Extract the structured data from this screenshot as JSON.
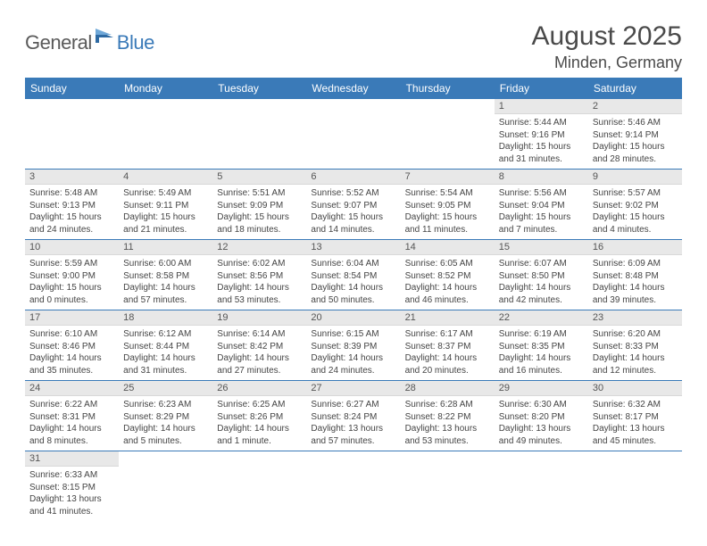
{
  "brand": {
    "part1": "General",
    "part2": "Blue"
  },
  "title": "August 2025",
  "location": "Minden, Germany",
  "colors": {
    "header_bg": "#3a7ab8",
    "header_fg": "#ffffff",
    "daynum_bg": "#e8e8e8",
    "row_border": "#3a7ab8",
    "logo_gray": "#5a5a5a",
    "logo_blue": "#3a7ab8",
    "text": "#444444",
    "page_bg": "#ffffff"
  },
  "typography": {
    "title_fontsize": 30,
    "location_fontsize": 18,
    "weekday_fontsize": 12,
    "daynum_fontsize": 11,
    "body_fontsize": 10
  },
  "weekdays": [
    "Sunday",
    "Monday",
    "Tuesday",
    "Wednesday",
    "Thursday",
    "Friday",
    "Saturday"
  ],
  "weeks": [
    [
      null,
      null,
      null,
      null,
      null,
      {
        "n": "1",
        "sr": "Sunrise: 5:44 AM",
        "ss": "Sunset: 9:16 PM",
        "dl": "Daylight: 15 hours and 31 minutes."
      },
      {
        "n": "2",
        "sr": "Sunrise: 5:46 AM",
        "ss": "Sunset: 9:14 PM",
        "dl": "Daylight: 15 hours and 28 minutes."
      }
    ],
    [
      {
        "n": "3",
        "sr": "Sunrise: 5:48 AM",
        "ss": "Sunset: 9:13 PM",
        "dl": "Daylight: 15 hours and 24 minutes."
      },
      {
        "n": "4",
        "sr": "Sunrise: 5:49 AM",
        "ss": "Sunset: 9:11 PM",
        "dl": "Daylight: 15 hours and 21 minutes."
      },
      {
        "n": "5",
        "sr": "Sunrise: 5:51 AM",
        "ss": "Sunset: 9:09 PM",
        "dl": "Daylight: 15 hours and 18 minutes."
      },
      {
        "n": "6",
        "sr": "Sunrise: 5:52 AM",
        "ss": "Sunset: 9:07 PM",
        "dl": "Daylight: 15 hours and 14 minutes."
      },
      {
        "n": "7",
        "sr": "Sunrise: 5:54 AM",
        "ss": "Sunset: 9:05 PM",
        "dl": "Daylight: 15 hours and 11 minutes."
      },
      {
        "n": "8",
        "sr": "Sunrise: 5:56 AM",
        "ss": "Sunset: 9:04 PM",
        "dl": "Daylight: 15 hours and 7 minutes."
      },
      {
        "n": "9",
        "sr": "Sunrise: 5:57 AM",
        "ss": "Sunset: 9:02 PM",
        "dl": "Daylight: 15 hours and 4 minutes."
      }
    ],
    [
      {
        "n": "10",
        "sr": "Sunrise: 5:59 AM",
        "ss": "Sunset: 9:00 PM",
        "dl": "Daylight: 15 hours and 0 minutes."
      },
      {
        "n": "11",
        "sr": "Sunrise: 6:00 AM",
        "ss": "Sunset: 8:58 PM",
        "dl": "Daylight: 14 hours and 57 minutes."
      },
      {
        "n": "12",
        "sr": "Sunrise: 6:02 AM",
        "ss": "Sunset: 8:56 PM",
        "dl": "Daylight: 14 hours and 53 minutes."
      },
      {
        "n": "13",
        "sr": "Sunrise: 6:04 AM",
        "ss": "Sunset: 8:54 PM",
        "dl": "Daylight: 14 hours and 50 minutes."
      },
      {
        "n": "14",
        "sr": "Sunrise: 6:05 AM",
        "ss": "Sunset: 8:52 PM",
        "dl": "Daylight: 14 hours and 46 minutes."
      },
      {
        "n": "15",
        "sr": "Sunrise: 6:07 AM",
        "ss": "Sunset: 8:50 PM",
        "dl": "Daylight: 14 hours and 42 minutes."
      },
      {
        "n": "16",
        "sr": "Sunrise: 6:09 AM",
        "ss": "Sunset: 8:48 PM",
        "dl": "Daylight: 14 hours and 39 minutes."
      }
    ],
    [
      {
        "n": "17",
        "sr": "Sunrise: 6:10 AM",
        "ss": "Sunset: 8:46 PM",
        "dl": "Daylight: 14 hours and 35 minutes."
      },
      {
        "n": "18",
        "sr": "Sunrise: 6:12 AM",
        "ss": "Sunset: 8:44 PM",
        "dl": "Daylight: 14 hours and 31 minutes."
      },
      {
        "n": "19",
        "sr": "Sunrise: 6:14 AM",
        "ss": "Sunset: 8:42 PM",
        "dl": "Daylight: 14 hours and 27 minutes."
      },
      {
        "n": "20",
        "sr": "Sunrise: 6:15 AM",
        "ss": "Sunset: 8:39 PM",
        "dl": "Daylight: 14 hours and 24 minutes."
      },
      {
        "n": "21",
        "sr": "Sunrise: 6:17 AM",
        "ss": "Sunset: 8:37 PM",
        "dl": "Daylight: 14 hours and 20 minutes."
      },
      {
        "n": "22",
        "sr": "Sunrise: 6:19 AM",
        "ss": "Sunset: 8:35 PM",
        "dl": "Daylight: 14 hours and 16 minutes."
      },
      {
        "n": "23",
        "sr": "Sunrise: 6:20 AM",
        "ss": "Sunset: 8:33 PM",
        "dl": "Daylight: 14 hours and 12 minutes."
      }
    ],
    [
      {
        "n": "24",
        "sr": "Sunrise: 6:22 AM",
        "ss": "Sunset: 8:31 PM",
        "dl": "Daylight: 14 hours and 8 minutes."
      },
      {
        "n": "25",
        "sr": "Sunrise: 6:23 AM",
        "ss": "Sunset: 8:29 PM",
        "dl": "Daylight: 14 hours and 5 minutes."
      },
      {
        "n": "26",
        "sr": "Sunrise: 6:25 AM",
        "ss": "Sunset: 8:26 PM",
        "dl": "Daylight: 14 hours and 1 minute."
      },
      {
        "n": "27",
        "sr": "Sunrise: 6:27 AM",
        "ss": "Sunset: 8:24 PM",
        "dl": "Daylight: 13 hours and 57 minutes."
      },
      {
        "n": "28",
        "sr": "Sunrise: 6:28 AM",
        "ss": "Sunset: 8:22 PM",
        "dl": "Daylight: 13 hours and 53 minutes."
      },
      {
        "n": "29",
        "sr": "Sunrise: 6:30 AM",
        "ss": "Sunset: 8:20 PM",
        "dl": "Daylight: 13 hours and 49 minutes."
      },
      {
        "n": "30",
        "sr": "Sunrise: 6:32 AM",
        "ss": "Sunset: 8:17 PM",
        "dl": "Daylight: 13 hours and 45 minutes."
      }
    ],
    [
      {
        "n": "31",
        "sr": "Sunrise: 6:33 AM",
        "ss": "Sunset: 8:15 PM",
        "dl": "Daylight: 13 hours and 41 minutes."
      },
      null,
      null,
      null,
      null,
      null,
      null
    ]
  ]
}
